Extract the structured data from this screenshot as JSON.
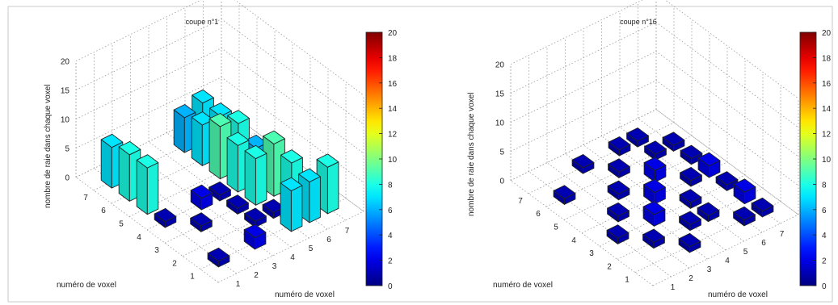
{
  "chart_data": [
    {
      "type": "bar3d",
      "title": "coupe n°1",
      "xlabel": "numéro de voxel",
      "ylabel": "numéro de voxel",
      "zlabel": "nombre de raie dans chaque voxel",
      "x_ticks": [
        "1",
        "2",
        "3",
        "4",
        "5",
        "6",
        "7"
      ],
      "y_ticks": [
        "1",
        "2",
        "3",
        "4",
        "5",
        "6",
        "7"
      ],
      "z_ticks": [
        "0",
        "5",
        "10",
        "15",
        "20"
      ],
      "zlim": [
        0,
        20
      ],
      "grid": true,
      "colormap": "jet",
      "colorbar": {
        "ticks": [
          "0",
          "2",
          "4",
          "6",
          "8",
          "10",
          "12",
          "14",
          "16",
          "18",
          "20"
        ],
        "range": [
          0,
          20
        ]
      },
      "values": [
        [
          1,
          0,
          2,
          0,
          7,
          7,
          8
        ],
        [
          0,
          0,
          0,
          1,
          1,
          8,
          0
        ],
        [
          0,
          1,
          0,
          1,
          8,
          9,
          0
        ],
        [
          1,
          0,
          2,
          1,
          8,
          6,
          2
        ],
        [
          8,
          0,
          0,
          0,
          9,
          8,
          0
        ],
        [
          8,
          0,
          0,
          0,
          7,
          7,
          0
        ],
        [
          7,
          0,
          0,
          0,
          6,
          7,
          0
        ]
      ]
    },
    {
      "type": "bar3d",
      "title": "coupe n°16",
      "xlabel": "numéro de voxel",
      "ylabel": "numéro de voxel",
      "zlabel": "nombre de raie dans chaque voxel",
      "x_ticks": [
        "1",
        "2",
        "3",
        "4",
        "5",
        "6",
        "7"
      ],
      "y_ticks": [
        "1",
        "2",
        "3",
        "4",
        "5",
        "6",
        "7"
      ],
      "z_ticks": [
        "0",
        "5",
        "10",
        "15",
        "20"
      ],
      "zlim": [
        0,
        20
      ],
      "grid": true,
      "colormap": "jet",
      "colorbar": {
        "ticks": [
          "0",
          "2",
          "4",
          "6",
          "8",
          "10",
          "12",
          "14",
          "16",
          "18",
          "20"
        ],
        "range": [
          0,
          20
        ]
      },
      "values": [
        [
          0,
          0,
          1,
          0,
          0,
          1,
          1
        ],
        [
          0,
          1,
          0,
          1,
          1,
          0,
          2
        ],
        [
          1,
          0,
          2,
          0,
          1,
          0,
          1
        ],
        [
          0,
          1,
          0,
          2,
          0,
          1,
          2
        ],
        [
          0,
          0,
          1,
          0,
          2,
          0,
          1
        ],
        [
          1,
          0,
          0,
          1,
          0,
          1,
          1
        ],
        [
          0,
          0,
          1,
          0,
          1,
          1,
          0
        ]
      ]
    }
  ]
}
